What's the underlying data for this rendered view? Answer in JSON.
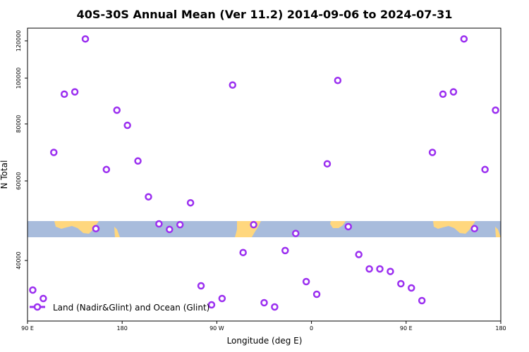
{
  "chart_data": {
    "type": "scatter",
    "title": "40S-30S Annual Mean (Ver 11.2)   2014-09-06 to 2024-07-31",
    "xlabel": "Longitude (deg E)",
    "ylabel": "N Total",
    "xlim": [
      90,
      540
    ],
    "x_ticks": [
      {
        "value": 90,
        "label": "90 E"
      },
      {
        "value": 180,
        "label": "180"
      },
      {
        "value": 270,
        "label": "90 W"
      },
      {
        "value": 360,
        "label": "0"
      },
      {
        "value": 450,
        "label": "90 E"
      },
      {
        "value": 540,
        "label": "180"
      }
    ],
    "y_ticks": [
      {
        "value": 40000,
        "label": "40000"
      },
      {
        "value": 60000,
        "label": "60000"
      },
      {
        "value": 80000,
        "label": "80000"
      },
      {
        "value": 100000,
        "label": "100000"
      },
      {
        "value": 120000,
        "label": "120000"
      }
    ],
    "series": [
      {
        "name": "Land (Nadir&Glint) and Ocean (Glint)",
        "color": "#9b2ff0",
        "x": [
          95,
          105,
          115,
          125,
          135,
          145,
          155,
          165,
          175,
          185,
          195,
          205,
          215,
          225,
          235,
          245,
          255,
          265,
          275,
          285,
          295,
          305,
          315,
          325,
          335,
          345,
          355,
          365,
          375,
          385,
          395,
          405,
          415,
          425,
          435,
          445,
          455,
          465,
          475,
          485,
          495,
          505,
          515,
          525,
          535
        ],
        "values": [
          33000,
          31000,
          70000,
          93000,
          94000,
          121000,
          48000,
          64000,
          86000,
          79500,
          67000,
          56000,
          49200,
          47800,
          49000,
          54500,
          34000,
          29500,
          31000,
          97000,
          42000,
          49000,
          30000,
          29000,
          42500,
          46800,
          35000,
          32000,
          66000,
          99000,
          48500,
          41500,
          38000,
          38000,
          37400,
          34500,
          33500,
          30500,
          70000,
          93000,
          94000,
          121000,
          48000,
          64000,
          86000
        ]
      }
    ],
    "legend": {
      "position": "bottom-left",
      "label": "Land (Nadir&Glint) and Ocean (Glint)"
    },
    "map_strip": {
      "ocean_color": "#a8bcdc",
      "land_color": "#ffd77e"
    }
  }
}
